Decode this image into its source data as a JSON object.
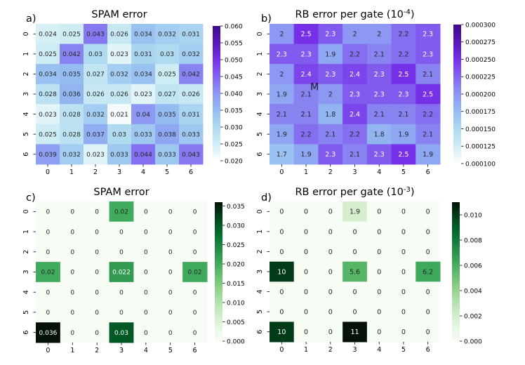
{
  "chart_data": [
    {
      "type": "heatmap",
      "panel_label": "a)",
      "title": "SPAM error",
      "x_ticks": [
        "0",
        "1",
        "2",
        "3",
        "4",
        "5",
        "6"
      ],
      "y_ticks": [
        "0",
        "1",
        "2",
        "3",
        "4",
        "5",
        "6"
      ],
      "colormap": "purple",
      "vmin": 0.02,
      "vmax": 0.06,
      "cbar_ticks": [
        0.02,
        0.025,
        0.03,
        0.035,
        0.04,
        0.045,
        0.05,
        0.055,
        0.06
      ],
      "cbar_tick_labels": [
        "0.020",
        "0.025",
        "0.030",
        "0.035",
        "0.040",
        "0.045",
        "0.050",
        "0.055",
        "0.060"
      ],
      "annotations": [
        [
          "0.024",
          "0.025",
          "0.043",
          "0.026",
          "0.034",
          "0.032",
          "0.031"
        ],
        [
          "0.025",
          "0.042",
          "0.03",
          "0.023",
          "0.031",
          "0.03",
          "0.032"
        ],
        [
          "0.034",
          "0.035",
          "0.027",
          "0.032",
          "0.034",
          "0.025",
          "0.042"
        ],
        [
          "0.028",
          "0.036",
          "0.026",
          "0.026",
          "0.023",
          "0.027",
          "0.026"
        ],
        [
          "0.023",
          "0.028",
          "0.032",
          "0.021",
          "0.04",
          "0.035",
          "0.031"
        ],
        [
          "0.025",
          "0.028",
          "0.037",
          "0.03",
          "0.033",
          "0.038",
          "0.033"
        ],
        [
          "0.039",
          "0.032",
          "0.023",
          "0.033",
          "0.044",
          "0.033",
          "0.043"
        ]
      ],
      "values": [
        [
          0.024,
          0.025,
          0.043,
          0.026,
          0.034,
          0.032,
          0.031
        ],
        [
          0.025,
          0.042,
          0.03,
          0.023,
          0.031,
          0.03,
          0.032
        ],
        [
          0.034,
          0.035,
          0.027,
          0.032,
          0.034,
          0.025,
          0.042
        ],
        [
          0.028,
          0.036,
          0.026,
          0.026,
          0.023,
          0.027,
          0.026
        ],
        [
          0.023,
          0.028,
          0.032,
          0.021,
          0.04,
          0.035,
          0.031
        ],
        [
          0.025,
          0.028,
          0.037,
          0.03,
          0.033,
          0.038,
          0.033
        ],
        [
          0.039,
          0.032,
          0.023,
          0.033,
          0.044,
          0.033,
          0.043
        ]
      ]
    },
    {
      "type": "heatmap",
      "panel_label": "b)",
      "title": "RB error per gate (10",
      "title_exp": "-4",
      "title_tail": ")",
      "x_ticks": [
        "0",
        "1",
        "2",
        "3",
        "4",
        "5",
        "6"
      ],
      "y_ticks": [
        "0",
        "1",
        "2",
        "3",
        "4",
        "5",
        "6"
      ],
      "colormap": "purple",
      "vmin": 0.0001,
      "vmax": 0.0003,
      "cbar_ticks": [
        0.0001,
        0.000125,
        0.00015,
        0.000175,
        0.0002,
        0.000225,
        0.00025,
        0.000275,
        0.0003
      ],
      "cbar_tick_labels": [
        "0.000100",
        "0.000125",
        "0.000150",
        "0.000175",
        "0.000200",
        "0.000225",
        "0.000250",
        "0.000275",
        "0.000300"
      ],
      "overlay_text": "M",
      "annotations": [
        [
          "2",
          "2.5",
          "2.3",
          "2",
          "2",
          "2.2",
          "2.3"
        ],
        [
          "2.3",
          "2.3",
          "1.9",
          "2.2",
          "2.1",
          "2.2",
          "2.3"
        ],
        [
          "2",
          "2.4",
          "2.3",
          "2.4",
          "2.3",
          "2.5",
          "2.1"
        ],
        [
          "1.9",
          "2.1",
          "2",
          "2.3",
          "2.3",
          "2.3",
          "2.5"
        ],
        [
          "2.1",
          "2.1",
          "1.8",
          "2.4",
          "2.1",
          "2.1",
          "2.2"
        ],
        [
          "1.9",
          "2.2",
          "2.1",
          "2.2",
          "1.8",
          "1.9",
          "2.1"
        ],
        [
          "1.7",
          "1.9",
          "2.3",
          "2.1",
          "2.3",
          "2.5",
          "1.9"
        ]
      ],
      "values": [
        [
          0.0002,
          0.00025,
          0.00023,
          0.0002,
          0.0002,
          0.00022,
          0.00023
        ],
        [
          0.00023,
          0.00023,
          0.00019,
          0.00022,
          0.00021,
          0.00022,
          0.00023
        ],
        [
          0.0002,
          0.00024,
          0.00023,
          0.00024,
          0.00023,
          0.00025,
          0.00021
        ],
        [
          0.00019,
          0.00021,
          0.0002,
          0.00023,
          0.00023,
          0.00023,
          0.00025
        ],
        [
          0.00021,
          0.00021,
          0.00018,
          0.00024,
          0.00021,
          0.00021,
          0.00022
        ],
        [
          0.00019,
          0.00022,
          0.00021,
          0.00022,
          0.00018,
          0.00019,
          0.00021
        ],
        [
          0.00017,
          0.00019,
          0.00023,
          0.00021,
          0.00023,
          0.00025,
          0.00019
        ]
      ]
    },
    {
      "type": "heatmap",
      "panel_label": "c)",
      "title": "SPAM error",
      "x_ticks": [
        "0",
        "1",
        "2",
        "3",
        "4",
        "5",
        "6"
      ],
      "y_ticks": [
        "0",
        "1",
        "2",
        "3",
        "4",
        "5",
        "6"
      ],
      "colormap": "green",
      "vmin": 0.0,
      "vmax": 0.036,
      "cbar_ticks": [
        0.0,
        0.005,
        0.01,
        0.015,
        0.02,
        0.025,
        0.03,
        0.035
      ],
      "cbar_tick_labels": [
        "0.000",
        "0.005",
        "0.010",
        "0.015",
        "0.020",
        "0.025",
        "0.030",
        "0.035"
      ],
      "annotations": [
        [
          "0",
          "0",
          "0",
          "0.02",
          "0",
          "0",
          "0"
        ],
        [
          "0",
          "0",
          "0",
          "0",
          "0",
          "0",
          "0"
        ],
        [
          "0",
          "0",
          "0",
          "0",
          "0",
          "0",
          "0"
        ],
        [
          "0.02",
          "0",
          "0",
          "0.022",
          "0",
          "0",
          "0.02"
        ],
        [
          "0",
          "0",
          "0",
          "0",
          "0",
          "0",
          "0"
        ],
        [
          "0",
          "0",
          "0",
          "0",
          "0",
          "0",
          "0"
        ],
        [
          "0.036",
          "0",
          "0",
          "0.03",
          "0",
          "0",
          "0"
        ]
      ],
      "values": [
        [
          0,
          0,
          0,
          0.02,
          0,
          0,
          0
        ],
        [
          0,
          0,
          0,
          0,
          0,
          0,
          0
        ],
        [
          0,
          0,
          0,
          0,
          0,
          0,
          0
        ],
        [
          0.02,
          0,
          0,
          0.022,
          0,
          0,
          0.02
        ],
        [
          0,
          0,
          0,
          0,
          0,
          0,
          0
        ],
        [
          0,
          0,
          0,
          0,
          0,
          0,
          0
        ],
        [
          0.036,
          0,
          0,
          0.03,
          0,
          0,
          0
        ]
      ]
    },
    {
      "type": "heatmap",
      "panel_label": "d)",
      "title": "RB error per gate (10",
      "title_exp": "-3",
      "title_tail": ")",
      "x_ticks": [
        "0",
        "1",
        "2",
        "3",
        "4",
        "5",
        "6"
      ],
      "y_ticks": [
        "0",
        "1",
        "2",
        "3",
        "4",
        "5",
        "6"
      ],
      "colormap": "green",
      "vmin": 0.0,
      "vmax": 0.011,
      "cbar_ticks": [
        0.0,
        0.002,
        0.004,
        0.006,
        0.008,
        0.01
      ],
      "cbar_tick_labels": [
        "0.000",
        "0.002",
        "0.004",
        "0.006",
        "0.008",
        "0.010"
      ],
      "annotations": [
        [
          "0",
          "0",
          "0",
          "1.9",
          "0",
          "0",
          "0"
        ],
        [
          "0",
          "0",
          "0",
          "0",
          "0",
          "0",
          "0"
        ],
        [
          "0",
          "0",
          "0",
          "0",
          "0",
          "0",
          "0"
        ],
        [
          "10",
          "0",
          "0",
          "5.6",
          "0",
          "0",
          "6.2"
        ],
        [
          "0",
          "0",
          "0",
          "0",
          "0",
          "0",
          "0"
        ],
        [
          "0",
          "0",
          "0",
          "0",
          "0",
          "0",
          "0"
        ],
        [
          "10",
          "0",
          "0",
          "11",
          "0",
          "0",
          "0"
        ]
      ],
      "values": [
        [
          0,
          0,
          0,
          0.0019,
          0,
          0,
          0
        ],
        [
          0,
          0,
          0,
          0,
          0,
          0,
          0
        ],
        [
          0,
          0,
          0,
          0,
          0,
          0,
          0
        ],
        [
          0.01,
          0,
          0,
          0.0056,
          0,
          0,
          0.0062
        ],
        [
          0,
          0,
          0,
          0,
          0,
          0,
          0
        ],
        [
          0,
          0,
          0,
          0,
          0,
          0,
          0
        ],
        [
          0.01,
          0,
          0,
          0.011,
          0,
          0,
          0
        ]
      ]
    }
  ]
}
